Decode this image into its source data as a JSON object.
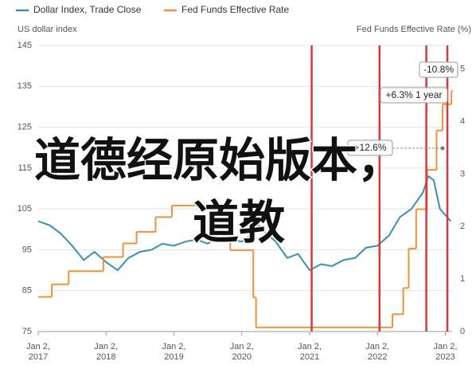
{
  "chart_data": {
    "type": "line",
    "y_axis_title": "US dollar index",
    "y2_axis_title": "Fed Funds Effective Rate (%)",
    "xlim": [
      2017,
      2023.1
    ],
    "xticks": [
      {
        "value": 2017,
        "label": "Jan 2, 2017"
      },
      {
        "value": 2018,
        "label": "Jan 2, 2018"
      },
      {
        "value": 2019,
        "label": "Jan 2, 2019"
      },
      {
        "value": 2020,
        "label": "Jan 2, 2020"
      },
      {
        "value": 2021,
        "label": "Jan 2, 2021"
      },
      {
        "value": 2022,
        "label": "Jan 2, 2022"
      },
      {
        "value": 2023,
        "label": "Jan 2, 2023"
      }
    ],
    "ylim": [
      75,
      145
    ],
    "yticks": [
      75,
      85,
      95,
      105,
      115,
      125,
      135,
      145
    ],
    "y2lim": [
      0,
      5.45
    ],
    "y2ticks": [
      0,
      1,
      2,
      3,
      4,
      5
    ],
    "grid": true,
    "series": [
      {
        "name": "Dollar Index, Trade Close",
        "color": "#3a8fb7",
        "x": [
          2017.0,
          2017.17,
          2017.33,
          2017.5,
          2017.67,
          2017.83,
          2018.0,
          2018.17,
          2018.33,
          2018.5,
          2018.67,
          2018.83,
          2019.0,
          2019.17,
          2019.33,
          2019.5,
          2019.67,
          2019.83,
          2020.0,
          2020.17,
          2020.25,
          2020.33,
          2020.5,
          2020.67,
          2020.83,
          2021.0,
          2021.17,
          2021.33,
          2021.5,
          2021.67,
          2021.83,
          2022.0,
          2022.17,
          2022.33,
          2022.5,
          2022.67,
          2022.75,
          2022.83,
          2022.92,
          2023.0,
          2023.08
        ],
        "values": [
          102,
          101,
          99,
          96,
          92.5,
          94.5,
          92,
          90,
          93,
          94.5,
          95,
          96.5,
          96,
          97,
          97.5,
          96.5,
          98.5,
          97.5,
          97,
          99,
          101,
          99.5,
          97,
          93,
          94,
          90,
          91.5,
          91,
          92.5,
          93,
          95.5,
          96,
          98.5,
          103,
          105,
          109,
          113,
          112,
          105,
          103.5,
          102
        ]
      },
      {
        "name": "Fed Funds Effective Rate",
        "color": "#f0923a",
        "axis": "y2",
        "step": true,
        "x": [
          2017.0,
          2017.2,
          2017.45,
          2017.96,
          2018.25,
          2018.45,
          2018.73,
          2018.97,
          2019.6,
          2019.72,
          2019.83,
          2020.17,
          2020.21,
          2022.22,
          2022.38,
          2022.46,
          2022.57,
          2022.73,
          2022.87,
          2022.96,
          2023.09
        ],
        "values": [
          0.66,
          0.9,
          1.15,
          1.42,
          1.68,
          1.9,
          2.18,
          2.4,
          2.1,
          1.85,
          1.55,
          0.65,
          0.08,
          0.33,
          0.83,
          1.58,
          2.33,
          3.08,
          3.83,
          4.33,
          4.58
        ]
      }
    ],
    "vlines": {
      "color": "#d9363e",
      "x": [
        2021.03,
        2022.03,
        2022.72,
        2023.03
      ]
    },
    "annotations": [
      "-10.8%",
      "+6.3% 1 year",
      "+12.6%"
    ],
    "overlay_text": [
      "道德经原始版本，",
      "道教"
    ]
  }
}
